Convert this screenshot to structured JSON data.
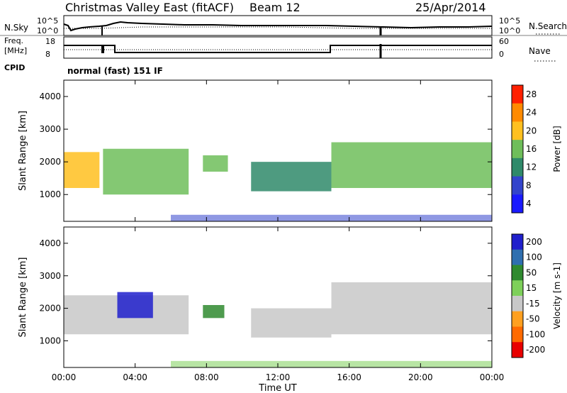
{
  "header": {
    "site": "Christmas Valley East (fitACF)",
    "beam": "Beam 12",
    "date": "25/Apr/2014",
    "mode": "normal (fast) 151 IF"
  },
  "noise_panel": {
    "left_label": "N.Sky",
    "right_label": "N.Search",
    "left_ticks": [
      "10^5",
      "10^0"
    ],
    "right_ticks": [
      "10^5",
      "10^0"
    ]
  },
  "freq_panel": {
    "left_label_line1": "Freq.",
    "left_label_line2": "[MHz]",
    "left_ticks": [
      "18",
      "8"
    ],
    "right_label": "Nave",
    "right_ticks": [
      "60",
      "0"
    ],
    "cpid_label": "CPID"
  },
  "time_axis": {
    "label": "Time UT",
    "ticks": [
      "00:00",
      "04:00",
      "08:00",
      "12:00",
      "16:00",
      "20:00",
      "00:00"
    ]
  },
  "chart_data": [
    {
      "type": "heatmap",
      "title": "Power",
      "ylabel": "Slant Range [km]",
      "xlabel": "",
      "ylim": [
        180,
        4500
      ],
      "yticks": [
        "1000",
        "2000",
        "3000",
        "4000"
      ],
      "colorbar_label": "Power [dB]",
      "colorbar_ticks": [
        "4",
        "8",
        "12",
        "16",
        "20",
        "24",
        "28"
      ],
      "colorbar_colors": [
        "#1a1aff",
        "#3344cc",
        "#2f8a6a",
        "#6fbe5a",
        "#ffc020",
        "#ff8a00",
        "#ff2000"
      ],
      "bands": [
        {
          "t0": 0.0,
          "t1": 2.0,
          "r0": 1200,
          "r1": 2300,
          "value": 18
        },
        {
          "t0": 2.2,
          "t1": 7.0,
          "r0": 1000,
          "r1": 2400,
          "value": 16
        },
        {
          "t0": 7.8,
          "t1": 9.2,
          "r0": 1700,
          "r1": 2200,
          "value": 14
        },
        {
          "t0": 10.5,
          "t1": 15.0,
          "r0": 1100,
          "r1": 2000,
          "value": 12
        },
        {
          "t0": 15.0,
          "t1": 24.0,
          "r0": 1200,
          "r1": 2600,
          "value": 14
        }
      ]
    },
    {
      "type": "heatmap",
      "title": "Velocity",
      "ylabel": "Slant Range [km]",
      "xlabel": "Time UT",
      "ylim": [
        180,
        4500
      ],
      "yticks": [
        "1000",
        "2000",
        "3000",
        "4000"
      ],
      "colorbar_label": "Velocity [m s-1]",
      "colorbar_ticks": [
        "200",
        "100",
        "50",
        "15",
        "-15",
        "-50",
        "-100",
        "-200"
      ],
      "colorbar_colors": [
        "#2020cc",
        "#2f6fb0",
        "#2f8a2f",
        "#7ed05a",
        "#c8c8c8",
        "#ffa020",
        "#ff6a00",
        "#e80000"
      ],
      "bands": [
        {
          "t0": 0.0,
          "t1": 7.0,
          "r0": 1200,
          "r1": 2400,
          "value": 0
        },
        {
          "t0": 3.0,
          "t1": 5.0,
          "r0": 1700,
          "r1": 2500,
          "value": 200
        },
        {
          "t0": 7.8,
          "t1": 9.0,
          "r0": 1700,
          "r1": 2100,
          "value": 60
        },
        {
          "t0": 10.5,
          "t1": 15.0,
          "r0": 1100,
          "r1": 2000,
          "value": 0
        },
        {
          "t0": 15.0,
          "t1": 24.0,
          "r0": 1200,
          "r1": 2800,
          "value": 0
        }
      ]
    }
  ]
}
